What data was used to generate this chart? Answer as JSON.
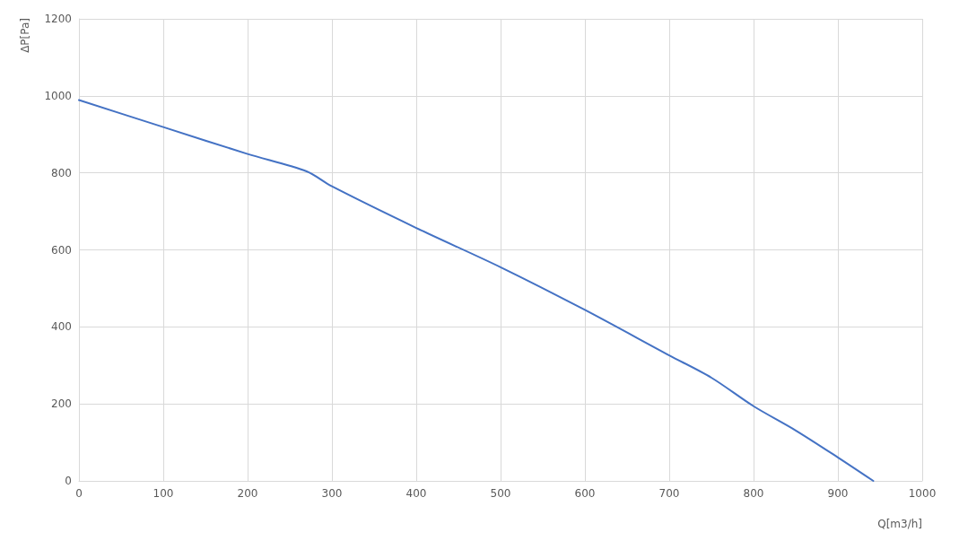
{
  "chart_data": {
    "type": "line",
    "xlabel": "Q[m3/h]",
    "ylabel": "ΔP[Pa]",
    "series": [
      {
        "color": "#4472c4",
        "x": [
          0,
          100,
          200,
          270,
          300,
          400,
          500,
          600,
          700,
          750,
          800,
          850,
          900,
          942
        ],
        "values": [
          989,
          919,
          849,
          804,
          765,
          657,
          555,
          444,
          326,
          268,
          194,
          131,
          61,
          0
        ]
      }
    ],
    "xlim": [
      0,
      1000
    ],
    "xticks": [
      0,
      100,
      200,
      300,
      400,
      500,
      600,
      700,
      800,
      900,
      1000
    ],
    "ylim": [
      0,
      1200
    ],
    "yticks": [
      0,
      200,
      400,
      600,
      800,
      1000,
      1200
    ],
    "grid": true,
    "marker": "none",
    "line_style": "solid"
  }
}
